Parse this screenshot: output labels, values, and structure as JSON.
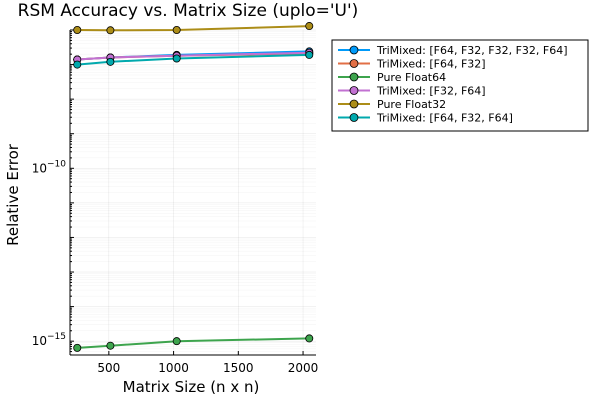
{
  "chart_data": {
    "type": "line",
    "title": "RSM Accuracy vs. Matrix Size (uplo='U')",
    "xlabel": "Matrix Size (n x n)",
    "ylabel": "Relative Error",
    "x_scale": "linear",
    "y_scale": "log10",
    "xlim": [
      200,
      2100
    ],
    "ylim_log10": [
      -15.4,
      -6.0
    ],
    "x_ticks": [
      500,
      1000,
      1500,
      2000
    ],
    "x_tick_labels": [
      "500",
      "1000",
      "1500",
      "2000"
    ],
    "y_ticks_log10": [
      -15,
      -10
    ],
    "y_tick_labels": [
      {
        "base": "10",
        "exp": "−15"
      },
      {
        "base": "10",
        "exp": "−10"
      }
    ],
    "grid": true,
    "legend_position": "top-right outside",
    "x": [
      256,
      512,
      1024,
      2048
    ],
    "series": [
      {
        "name": "TriMixed: [F64, F32, F32, F32, F64]",
        "color": "#009af9",
        "values": [
          1.4e-07,
          1.6e-07,
          1.9e-07,
          2.4e-07
        ]
      },
      {
        "name": "TriMixed: [F64, F32]",
        "color": "#e26f46",
        "values": [
          1.4e-07,
          1.6e-07,
          1.8e-07,
          2.1e-07
        ]
      },
      {
        "name": "Pure Float64",
        "color": "#3da44d",
        "values": [
          6.4e-16,
          7.4e-16,
          1e-15,
          1.2e-15
        ]
      },
      {
        "name": "TriMixed: [F32, F64]",
        "color": "#c271d2",
        "values": [
          1.4e-07,
          1.6e-07,
          1.8e-07,
          2.2e-07
        ]
      },
      {
        "name": "Pure Float32",
        "color": "#ac8d18",
        "values": [
          1e-06,
          9.8e-07,
          1e-06,
          1.3e-06
        ]
      },
      {
        "name": "TriMixed: [F64, F32, F64]",
        "color": "#00a9ad",
        "values": [
          1e-07,
          1.2e-07,
          1.5e-07,
          1.9e-07
        ]
      }
    ]
  }
}
